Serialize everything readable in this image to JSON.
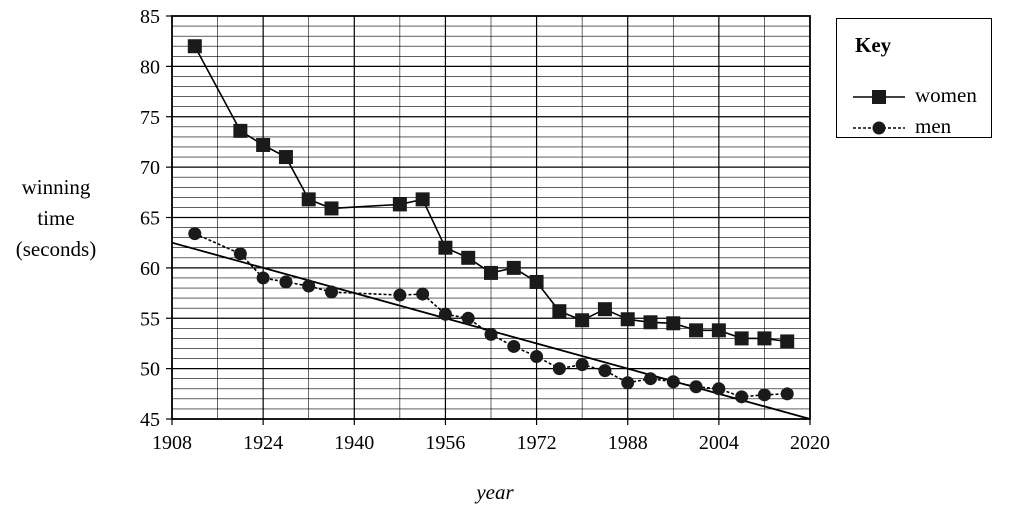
{
  "chart_data": {
    "type": "line",
    "xlabel": "year",
    "ylabel_lines": [
      "winning",
      "time",
      "(seconds)"
    ],
    "xlim": [
      1908,
      2020
    ],
    "ylim": [
      45,
      85
    ],
    "x_ticks": [
      1908,
      1924,
      1940,
      1956,
      1972,
      1988,
      2004,
      2020
    ],
    "y_ticks": [
      45,
      50,
      55,
      60,
      65,
      70,
      75,
      80,
      85
    ],
    "grid": true,
    "legend": {
      "title": "Key",
      "placement": "top-right",
      "entries": [
        "women",
        "men"
      ]
    },
    "series": [
      {
        "name": "women",
        "marker": "square",
        "line_style": "solid",
        "points": [
          [
            1912,
            82.0
          ],
          [
            1920,
            73.6
          ],
          [
            1924,
            72.2
          ],
          [
            1928,
            71.0
          ],
          [
            1932,
            66.8
          ],
          [
            1936,
            65.9
          ],
          [
            1948,
            66.3
          ],
          [
            1952,
            66.8
          ],
          [
            1956,
            62.0
          ],
          [
            1960,
            61.0
          ],
          [
            1964,
            59.5
          ],
          [
            1968,
            60.0
          ],
          [
            1972,
            58.6
          ],
          [
            1976,
            55.7
          ],
          [
            1980,
            54.8
          ],
          [
            1984,
            55.9
          ],
          [
            1988,
            54.9
          ],
          [
            1992,
            54.6
          ],
          [
            1996,
            54.5
          ],
          [
            2000,
            53.8
          ],
          [
            2004,
            53.8
          ],
          [
            2008,
            53.0
          ],
          [
            2012,
            53.0
          ],
          [
            2016,
            52.7
          ]
        ]
      },
      {
        "name": "men",
        "marker": "circle",
        "line_style": "dotted",
        "points": [
          [
            1912,
            63.4
          ],
          [
            1920,
            61.4
          ],
          [
            1924,
            59.0
          ],
          [
            1928,
            58.6
          ],
          [
            1932,
            58.2
          ],
          [
            1936,
            57.6
          ],
          [
            1948,
            57.3
          ],
          [
            1952,
            57.4
          ],
          [
            1956,
            55.4
          ],
          [
            1960,
            55.0
          ],
          [
            1964,
            53.4
          ],
          [
            1968,
            52.2
          ],
          [
            1972,
            51.2
          ],
          [
            1976,
            50.0
          ],
          [
            1980,
            50.4
          ],
          [
            1984,
            49.8
          ],
          [
            1988,
            48.6
          ],
          [
            1992,
            49.0
          ],
          [
            1996,
            48.7
          ],
          [
            2000,
            48.2
          ],
          [
            2004,
            48.0
          ],
          [
            2008,
            47.2
          ],
          [
            2012,
            47.4
          ],
          [
            2016,
            47.5
          ]
        ]
      }
    ],
    "trend_line": {
      "points": [
        [
          1908,
          62.5
        ],
        [
          2020,
          45.0
        ]
      ]
    }
  }
}
